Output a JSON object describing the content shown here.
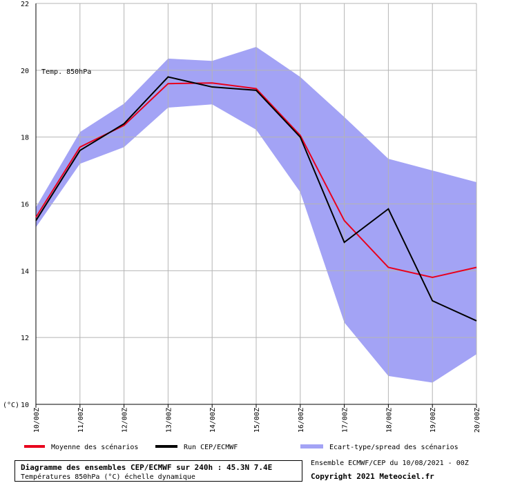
{
  "chart_data": {
    "type": "line",
    "x": [
      "10/00Z",
      "11/00Z",
      "12/00Z",
      "13/00Z",
      "14/00Z",
      "15/00Z",
      "16/00Z",
      "17/00Z",
      "18/00Z",
      "19/00Z",
      "20/00Z"
    ],
    "ylim": [
      10,
      22
    ],
    "yticks": [
      10,
      12,
      14,
      16,
      18,
      20,
      22
    ],
    "ylabel": "(°C)",
    "annotation": "Temp. 850hPa",
    "grid": true,
    "series": [
      {
        "name": "Moyenne des scénarios",
        "type": "line",
        "color": "#e8001c",
        "values": [
          15.6,
          17.7,
          18.35,
          19.6,
          19.62,
          19.45,
          18.05,
          15.5,
          14.1,
          13.8,
          14.1
        ]
      },
      {
        "name": "Run CEP/ECMWF",
        "type": "line",
        "color": "#000000",
        "values": [
          15.5,
          17.6,
          18.4,
          19.8,
          19.5,
          19.4,
          18.0,
          14.85,
          15.85,
          13.1,
          12.5
        ]
      },
      {
        "name": "Ecart-type/spread des scénarios",
        "type": "band",
        "color": "#a3a3f5",
        "upper": [
          15.9,
          18.15,
          19.0,
          20.35,
          20.28,
          20.7,
          19.8,
          18.6,
          17.35,
          17.0,
          16.65
        ],
        "lower": [
          15.3,
          17.2,
          17.7,
          18.88,
          18.98,
          18.22,
          16.35,
          12.45,
          10.85,
          10.65,
          11.5
        ]
      }
    ]
  },
  "footer": {
    "title": "Diagramme des ensembles CEP/ECMWF sur 240h : 45.3N 7.4E",
    "subtitle": "Températures 850hPa (°C) échelle dynamique",
    "run_info": "Ensemble ECMWF/CEP du 10/08/2021 - 00Z",
    "copyright": "Copyright 2021 Meteociel.fr"
  }
}
